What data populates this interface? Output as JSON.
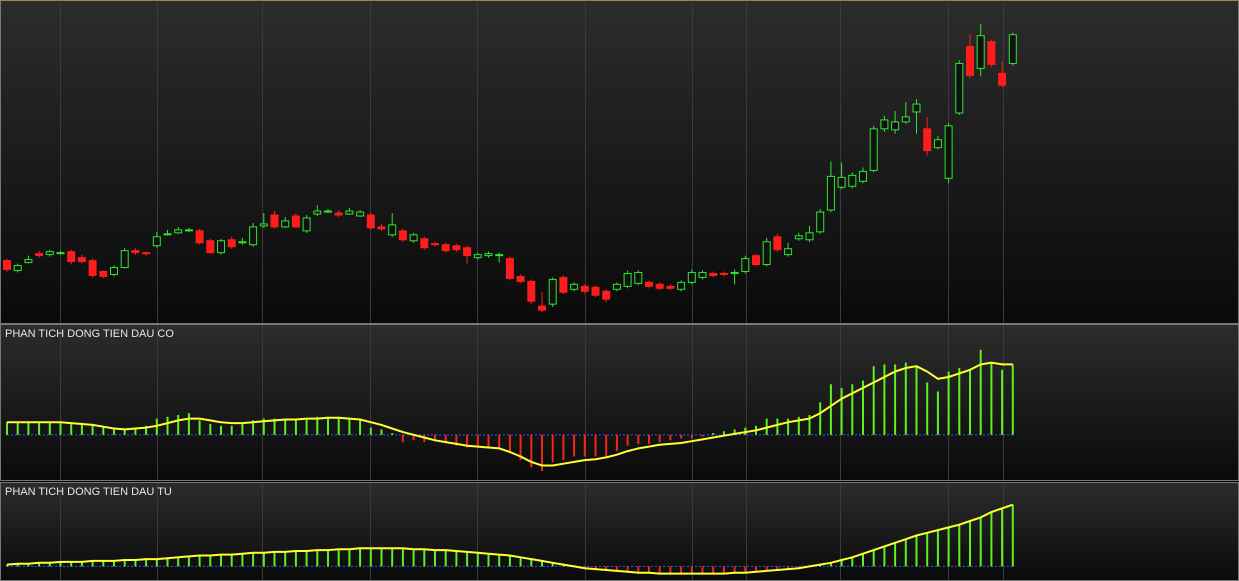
{
  "chart_data": [
    {
      "type": "candlestick",
      "ylim": [
        0,
        323
      ],
      "up_color": "#2ee62e",
      "down_color": "#ff1c1c",
      "open": [
        62,
        52,
        60,
        69,
        68,
        70,
        71,
        65,
        62,
        51,
        48,
        55,
        72,
        70,
        77,
        88,
        90,
        92,
        92,
        82,
        70,
        83,
        80,
        78,
        97,
        108,
        96,
        107,
        92,
        109,
        111,
        110,
        109,
        107,
        108,
        96,
        88,
        92,
        82,
        84,
        79,
        78,
        77,
        75,
        65,
        67,
        68,
        64,
        46,
        41,
        16,
        18,
        45,
        33,
        36,
        35,
        31,
        33,
        36,
        39,
        40,
        38,
        36,
        33,
        40,
        45,
        49,
        49,
        49,
        51,
        67,
        58,
        86,
        68,
        84,
        83,
        91,
        113,
        136,
        137,
        142,
        153,
        195,
        194,
        202,
        212,
        195,
        176,
        145,
        211,
        278,
        256,
        283,
        251,
        261
      ],
      "high": [
        64,
        59,
        67,
        72,
        73,
        72,
        73,
        68,
        64,
        52,
        57,
        75,
        75,
        71,
        91,
        93,
        96,
        95,
        94,
        84,
        84,
        86,
        85,
        100,
        110,
        112,
        106,
        110,
        108,
        118,
        114,
        113,
        115,
        113,
        110,
        99,
        110,
        94,
        90,
        86,
        81,
        80,
        79,
        77,
        70,
        71,
        70,
        66,
        48,
        43,
        30,
        45,
        47,
        40,
        38,
        37,
        33,
        40,
        52,
        52,
        42,
        40,
        38,
        42,
        53,
        52,
        51,
        51,
        53,
        67,
        69,
        85,
        89,
        80,
        90,
        97,
        114,
        162,
        161,
        151,
        156,
        198,
        208,
        213,
        222,
        225,
        207,
        188,
        201,
        264,
        290,
        301,
        285,
        263,
        292
      ],
      "low": [
        51,
        50,
        59,
        65,
        66,
        68,
        58,
        59,
        45,
        44,
        46,
        54,
        68,
        67,
        75,
        87,
        89,
        91,
        78,
        69,
        68,
        74,
        78,
        76,
        95,
        94,
        95,
        95,
        90,
        107,
        110,
        106,
        108,
        106,
        93,
        92,
        86,
        81,
        80,
        73,
        76,
        70,
        71,
        59,
        63,
        65,
        60,
        42,
        39,
        18,
        10,
        15,
        28,
        31,
        29,
        25,
        20,
        31,
        34,
        37,
        34,
        32,
        32,
        31,
        38,
        43,
        45,
        46,
        38,
        49,
        56,
        56,
        71,
        66,
        82,
        81,
        89,
        111,
        134,
        135,
        140,
        151,
        192,
        190,
        200,
        190,
        168,
        174,
        140,
        209,
        246,
        248,
        257,
        237,
        259
      ],
      "close": [
        53,
        57,
        63,
        67,
        71,
        70,
        61,
        61,
        47,
        46,
        55,
        72,
        70,
        69,
        86,
        89,
        93,
        93,
        80,
        70,
        82,
        76,
        81,
        96,
        99,
        96,
        102,
        96,
        105,
        112,
        112,
        108,
        112,
        111,
        95,
        94,
        98,
        83,
        88,
        75,
        78,
        72,
        73,
        67,
        68,
        69,
        68,
        44,
        41,
        21,
        12,
        43,
        30,
        38,
        31,
        27,
        23,
        38,
        49,
        50,
        36,
        34,
        34,
        40,
        50,
        50,
        47,
        48,
        50,
        64,
        58,
        81,
        73,
        74,
        87,
        90,
        111,
        147,
        146,
        148,
        152,
        195,
        204,
        202,
        207,
        220,
        173,
        184,
        198,
        261,
        249,
        289,
        260,
        239,
        290
      ]
    },
    {
      "type": "indicator",
      "title": "PHAN TICH DONG TIEN DAU CO",
      "ylim": [
        -50,
        105
      ],
      "up_color": "#5cf21c",
      "down_color": "#ee2a14",
      "line_color": "#ffff33",
      "zero_color": "#3355ff",
      "bars": [
        14,
        14,
        14,
        14,
        14,
        14,
        12,
        12,
        10,
        8,
        6,
        6,
        8,
        10,
        18,
        20,
        22,
        24,
        16,
        12,
        10,
        10,
        12,
        16,
        18,
        18,
        18,
        18,
        18,
        20,
        20,
        20,
        18,
        18,
        8,
        6,
        2,
        -8,
        -6,
        -8,
        -6,
        -8,
        -12,
        -14,
        -14,
        -14,
        -16,
        -20,
        -28,
        -36,
        -40,
        -30,
        -28,
        -24,
        -24,
        -24,
        -24,
        -18,
        -12,
        -10,
        -10,
        -8,
        -6,
        -4,
        -4,
        -2,
        2,
        4,
        6,
        8,
        10,
        18,
        18,
        18,
        20,
        22,
        36,
        56,
        52,
        56,
        60,
        76,
        78,
        78,
        80,
        76,
        58,
        48,
        70,
        74,
        72,
        94,
        80,
        72,
        78
      ],
      "line": [
        14,
        14,
        14,
        14,
        14,
        14,
        13,
        12,
        11,
        9,
        7,
        6,
        7,
        8,
        10,
        13,
        16,
        18,
        18,
        16,
        14,
        13,
        13,
        14,
        15,
        16,
        17,
        17,
        18,
        18,
        19,
        19,
        18,
        17,
        14,
        11,
        7,
        3,
        0,
        -3,
        -6,
        -8,
        -10,
        -12,
        -13,
        -14,
        -15,
        -19,
        -24,
        -30,
        -34,
        -34,
        -32,
        -30,
        -28,
        -27,
        -25,
        -22,
        -18,
        -15,
        -13,
        -11,
        -10,
        -9,
        -7,
        -5,
        -3,
        -1,
        1,
        3,
        5,
        8,
        11,
        14,
        16,
        18,
        24,
        32,
        40,
        46,
        52,
        58,
        64,
        70,
        74,
        76,
        70,
        62,
        64,
        68,
        72,
        78,
        80,
        78,
        78
      ]
    },
    {
      "type": "indicator",
      "title": "PHAN TICH DONG TIEN DAU TU",
      "ylim": [
        -15,
        82
      ],
      "up_color": "#5cf21c",
      "down_color": "#ee2a14",
      "line_color": "#ffff33",
      "zero_color": "#3355ff",
      "bars": [
        2,
        3,
        3,
        4,
        4,
        5,
        5,
        5,
        6,
        6,
        6,
        7,
        7,
        8,
        8,
        9,
        10,
        11,
        12,
        12,
        13,
        13,
        14,
        15,
        15,
        16,
        16,
        17,
        17,
        18,
        18,
        19,
        19,
        20,
        20,
        20,
        20,
        20,
        19,
        19,
        18,
        18,
        17,
        16,
        15,
        14,
        13,
        12,
        10,
        8,
        6,
        4,
        2,
        0,
        -2,
        -3,
        -4,
        -5,
        -6,
        -7,
        -7,
        -8,
        -8,
        -8,
        -8,
        -8,
        -8,
        -8,
        -7,
        -7,
        -6,
        -5,
        -4,
        -3,
        -2,
        0,
        2,
        4,
        7,
        10,
        14,
        18,
        22,
        26,
        30,
        34,
        37,
        40,
        43,
        46,
        50,
        54,
        60,
        64,
        68
      ],
      "line": [
        2,
        3,
        3,
        4,
        4,
        5,
        5,
        5,
        6,
        6,
        6,
        7,
        7,
        8,
        8,
        9,
        10,
        11,
        12,
        12,
        13,
        13,
        14,
        15,
        15,
        16,
        16,
        17,
        17,
        18,
        18,
        19,
        19,
        20,
        20,
        20,
        20,
        20,
        19,
        19,
        18,
        18,
        17,
        16,
        15,
        14,
        13,
        12,
        10,
        8,
        6,
        4,
        2,
        0,
        -2,
        -3,
        -4,
        -5,
        -6,
        -7,
        -7,
        -8,
        -8,
        -8,
        -8,
        -8,
        -8,
        -8,
        -7,
        -7,
        -6,
        -5,
        -4,
        -3,
        -2,
        0,
        2,
        4,
        7,
        10,
        14,
        18,
        22,
        26,
        30,
        34,
        37,
        40,
        43,
        46,
        50,
        54,
        60,
        64,
        68
      ]
    }
  ]
}
